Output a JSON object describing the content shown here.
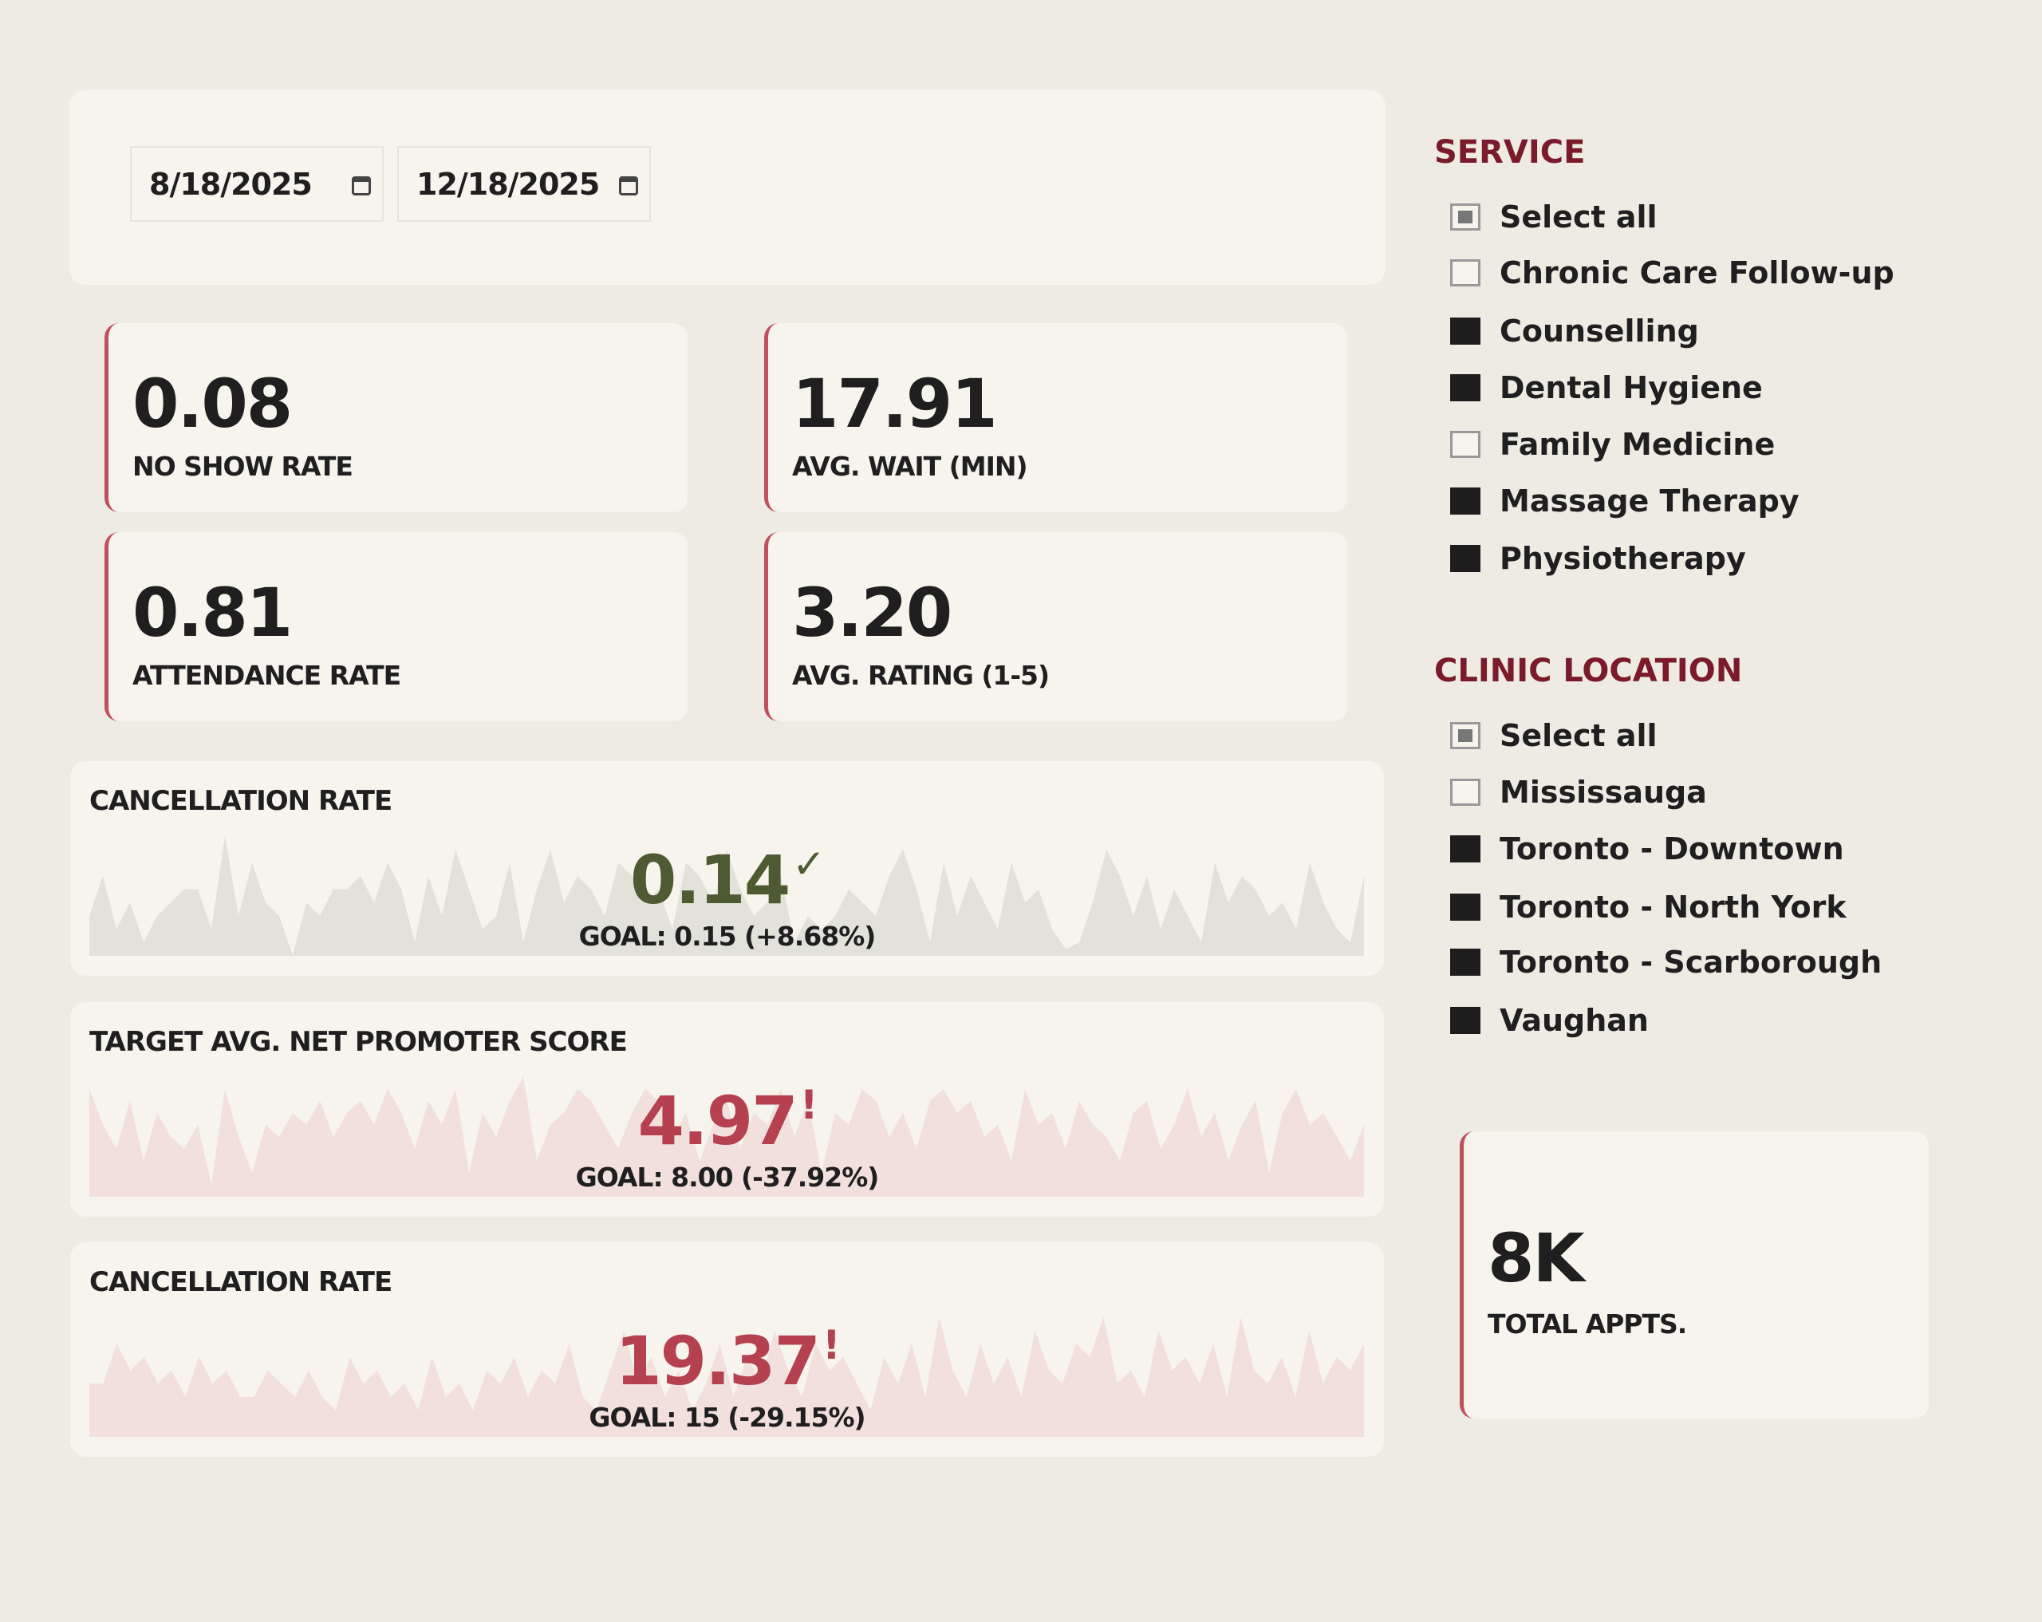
{
  "date_range": {
    "start": "8/18/2025",
    "end": "12/18/2025",
    "icon": "calendar-icon"
  },
  "kpis": [
    {
      "value": "0.08",
      "label": "NO SHOW RATE"
    },
    {
      "value": "17.91",
      "label": "AVG. WAIT (MIN)"
    },
    {
      "value": "0.81",
      "label": "ATTENDANCE RATE"
    },
    {
      "value": "3.20",
      "label": "AVG. RATING (1-5)"
    }
  ],
  "chart_data": [
    {
      "type": "area",
      "title": "CANCELLATION RATE",
      "value": "0.14",
      "status_icon": "checkmark-icon",
      "goal": "GOAL: 0.15 (+8.68%)",
      "value_color": "#4e5a32",
      "fill": "#e2e2da",
      "values": [
        3,
        6,
        2,
        4,
        1,
        3,
        4,
        5,
        5,
        2,
        9,
        3,
        7,
        4,
        3,
        0,
        4,
        3,
        5,
        5,
        6,
        4,
        7,
        5,
        1,
        6,
        3,
        8,
        5,
        2,
        3,
        7,
        1,
        5,
        8,
        4,
        6,
        5,
        3,
        7,
        6,
        4,
        5,
        2,
        7,
        6,
        4,
        8,
        5,
        3,
        4,
        6,
        1,
        3,
        2,
        3,
        5,
        4,
        3,
        6,
        8,
        5,
        1,
        7,
        3,
        6,
        4,
        2,
        7,
        4,
        5,
        2,
        0.5,
        1,
        4,
        8,
        6,
        3,
        6,
        2,
        5,
        3,
        1,
        7,
        4,
        6,
        5,
        3,
        4,
        2,
        7,
        4,
        2,
        1,
        6
      ]
    },
    {
      "type": "area",
      "title": "TARGET AVG. NET PROMOTER SCORE",
      "value": "4.97",
      "status_icon": "exclamation-icon",
      "goal": "GOAL: 8.00 (-37.92%)",
      "value_color": "#b5404f",
      "fill": "#f1e0dc",
      "values": [
        9,
        6,
        4,
        8,
        3,
        7,
        5,
        4,
        6,
        1,
        9,
        5,
        2,
        6,
        5,
        7,
        6,
        8,
        5,
        7,
        8,
        6,
        9,
        7,
        4,
        8,
        6,
        9,
        2,
        7,
        5,
        8,
        10,
        3,
        6,
        7,
        9,
        8,
        6,
        4,
        7,
        9,
        8,
        5,
        7,
        3,
        6,
        8,
        4,
        7,
        6,
        9,
        5,
        8,
        2,
        7,
        6,
        9,
        8,
        5,
        7,
        4,
        8,
        9,
        7,
        8,
        5,
        6,
        3,
        9,
        6,
        7,
        4,
        8,
        6,
        5,
        3,
        7,
        8,
        4,
        6,
        9,
        5,
        7,
        3,
        6,
        8,
        2,
        7,
        9,
        6,
        7,
        5,
        3,
        6
      ]
    },
    {
      "type": "area",
      "title": "CANCELLATION RATE",
      "value": "19.37",
      "status_icon": "exclamation-icon",
      "goal": "GOAL: 15 (-29.15%)",
      "value_color": "#b5404f",
      "fill": "#f1e0dc",
      "values": [
        4,
        4,
        7,
        5,
        6,
        4,
        5,
        3,
        6,
        4,
        5,
        3,
        3,
        5,
        4,
        3,
        5,
        3,
        2,
        6,
        4,
        5,
        3,
        4,
        2,
        6,
        3,
        4,
        2,
        5,
        4,
        6,
        3,
        5,
        4,
        7,
        3,
        2,
        5,
        8,
        4,
        6,
        3,
        5,
        2,
        4,
        7,
        3,
        6,
        4,
        8,
        5,
        3,
        7,
        5,
        6,
        4,
        2,
        6,
        4,
        7,
        3,
        9,
        5,
        3,
        7,
        4,
        6,
        3,
        8,
        5,
        4,
        7,
        6,
        9,
        4,
        5,
        3,
        8,
        5,
        6,
        4,
        7,
        3,
        9,
        5,
        4,
        6,
        3,
        8,
        4,
        6,
        5,
        7
      ]
    }
  ],
  "service": {
    "title": "SERVICE",
    "items": [
      {
        "label": "Select all",
        "state": "partial"
      },
      {
        "label": "Chronic Care Follow-up",
        "state": "unchecked"
      },
      {
        "label": "Counselling",
        "state": "checked"
      },
      {
        "label": "Dental Hygiene",
        "state": "checked"
      },
      {
        "label": "Family Medicine",
        "state": "unchecked"
      },
      {
        "label": "Massage Therapy",
        "state": "checked"
      },
      {
        "label": "Physiotherapy",
        "state": "checked"
      }
    ]
  },
  "location": {
    "title": "CLINIC LOCATION",
    "items": [
      {
        "label": "Select all",
        "state": "partial"
      },
      {
        "label": "Mississauga",
        "state": "unchecked"
      },
      {
        "label": "Toronto - Downtown",
        "state": "checked"
      },
      {
        "label": "Toronto - North York",
        "state": "checked"
      },
      {
        "label": "Toronto - Scarborough",
        "state": "checked"
      },
      {
        "label": "Vaughan",
        "state": "checked"
      }
    ]
  },
  "total": {
    "value": "8K",
    "label": "TOTAL APPTS."
  },
  "colors": {
    "accent": "#c0505e",
    "header": "#7a1a2a",
    "background": "#eeebe3",
    "card": "#f6f4ec"
  }
}
